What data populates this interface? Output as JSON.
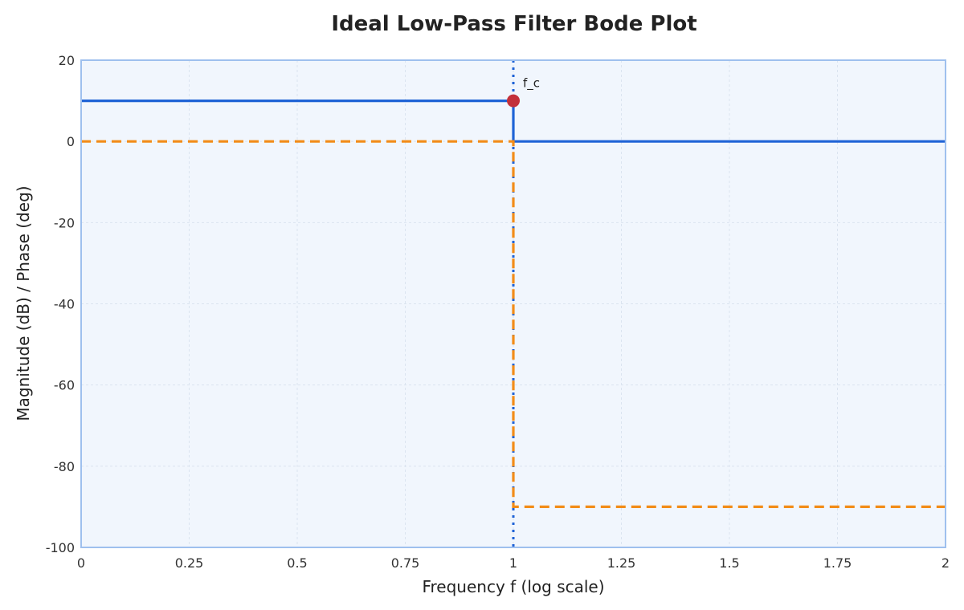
{
  "chart_data": {
    "type": "line",
    "title": "Ideal Low-Pass Filter Bode Plot",
    "xlabel": "Frequency f (log scale)",
    "ylabel": "Magnitude (dB) / Phase (deg)",
    "xlim": [
      0,
      2
    ],
    "ylim": [
      -100,
      20
    ],
    "x_ticks": [
      0,
      0.25,
      0.5,
      0.75,
      1,
      1.25,
      1.5,
      1.75,
      2
    ],
    "x_tick_labels": [
      "0",
      "0.25",
      "0.5",
      "0.75",
      "1",
      "1.25",
      "1.5",
      "1.75",
      "2"
    ],
    "y_ticks": [
      -100,
      -80,
      -60,
      -40,
      -20,
      0,
      20
    ],
    "y_tick_labels": [
      "-100",
      "-80",
      "-60",
      "-40",
      "-20",
      "0",
      "20"
    ],
    "grid": true,
    "series": [
      {
        "style": "solid",
        "color": "#1f63d6",
        "x": [
          0,
          1,
          1,
          2
        ],
        "y": [
          10,
          10,
          0,
          0
        ]
      },
      {
        "style": "dashed",
        "color": "#f28c18",
        "x": [
          0,
          1,
          1,
          2
        ],
        "y": [
          0,
          0,
          -90,
          -90
        ]
      }
    ],
    "reference_line": {
      "x": 1,
      "style": "dotted",
      "color": "#1f63d6"
    },
    "marker": {
      "x": 1,
      "y": 10,
      "color": "#c3303a",
      "label": "f_c"
    }
  }
}
